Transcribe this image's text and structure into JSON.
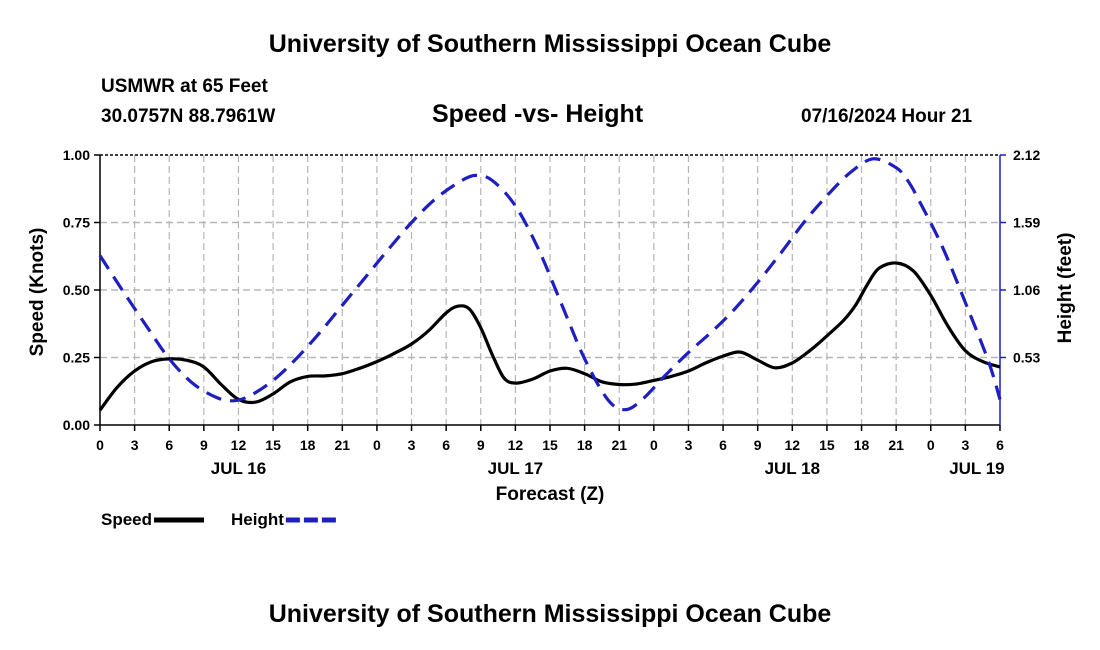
{
  "header": {
    "main_title": "University of Southern Mississippi Ocean Cube",
    "station": "USMWR at 65 Feet",
    "coordinates": "30.0757N  88.7961W",
    "chart_title": "Speed -vs- Height",
    "timestamp": "07/16/2024 Hour 21"
  },
  "footer": {
    "main_title": "University of Southern Mississippi Ocean Cube"
  },
  "colors": {
    "speed": "#000000",
    "height": "#1f1fbf",
    "grid": "#b5b5b5"
  },
  "chart_data": {
    "type": "line",
    "title": "Speed -vs- Height",
    "xlabel": "Forecast (Z)",
    "ylabel": "Speed (Knots)",
    "y2label": "Height (feet)",
    "x_unit": "hours since 2024-07-16 00Z",
    "xlim": [
      0,
      78
    ],
    "ylim": [
      0,
      1.0
    ],
    "y2lim": [
      0,
      2.12
    ],
    "x_ticks": [
      0,
      3,
      6,
      9,
      12,
      15,
      18,
      21,
      24,
      27,
      30,
      33,
      36,
      39,
      42,
      45,
      48,
      51,
      54,
      57,
      60,
      63,
      66,
      69,
      72,
      75,
      78
    ],
    "x_tick_labels": [
      "0",
      "3",
      "6",
      "9",
      "12",
      "15",
      "18",
      "21",
      "0",
      "3",
      "6",
      "9",
      "12",
      "15",
      "18",
      "21",
      "0",
      "3",
      "6",
      "9",
      "12",
      "15",
      "18",
      "21",
      "0",
      "3",
      "6"
    ],
    "date_labels": [
      {
        "x": 12,
        "label": "JUL 16"
      },
      {
        "x": 36,
        "label": "JUL 17"
      },
      {
        "x": 60,
        "label": "JUL 18"
      },
      {
        "x": 76,
        "label": "JUL 19"
      }
    ],
    "y_ticks": [
      0,
      0.25,
      0.5,
      0.75,
      1.0
    ],
    "y_tick_labels": [
      "0.00",
      "0.25",
      "0.50",
      "0.75",
      "1.00"
    ],
    "y2_ticks": [
      0.53,
      1.06,
      1.59,
      2.12
    ],
    "y2_tick_labels": [
      "0.53",
      "1.06",
      "1.59",
      "2.12"
    ],
    "grid": true,
    "legend_position": "bottom-left",
    "series": [
      {
        "name": "Speed",
        "axis": "left",
        "style": "solid",
        "x": [
          0,
          1.5,
          3,
          4.5,
          6,
          7.5,
          9,
          10.5,
          12,
          13.5,
          15,
          16.5,
          18,
          19.5,
          21,
          22.5,
          24,
          25.5,
          27,
          28.5,
          30,
          31,
          32,
          33,
          34,
          35,
          36,
          37.5,
          39,
          40.5,
          42,
          43.5,
          45,
          46.5,
          48,
          49.5,
          51,
          52.5,
          54,
          55.5,
          57,
          58.5,
          60,
          61.5,
          63,
          64.5,
          65.5,
          66.5,
          67.5,
          69,
          70.5,
          72,
          73.5,
          75,
          76.5,
          78
        ],
        "values": [
          0.055,
          0.14,
          0.2,
          0.235,
          0.245,
          0.24,
          0.215,
          0.15,
          0.095,
          0.085,
          0.115,
          0.16,
          0.18,
          0.182,
          0.19,
          0.21,
          0.235,
          0.265,
          0.3,
          0.35,
          0.415,
          0.44,
          0.43,
          0.36,
          0.26,
          0.175,
          0.155,
          0.17,
          0.2,
          0.21,
          0.19,
          0.16,
          0.15,
          0.152,
          0.165,
          0.18,
          0.2,
          0.23,
          0.255,
          0.27,
          0.24,
          0.212,
          0.23,
          0.275,
          0.33,
          0.39,
          0.445,
          0.52,
          0.58,
          0.6,
          0.57,
          0.48,
          0.365,
          0.275,
          0.235,
          0.215
        ]
      },
      {
        "name": "Height",
        "axis": "right",
        "style": "dashed",
        "x": [
          0,
          2,
          4,
          6,
          8,
          10,
          11.5,
          13,
          15,
          17,
          19,
          21,
          23,
          25,
          27,
          29,
          31,
          32.5,
          34,
          36,
          38,
          40,
          42,
          44,
          45.5,
          47,
          49,
          51,
          53,
          55,
          57,
          59,
          61,
          63,
          65,
          67,
          69,
          70,
          71,
          73,
          75,
          77,
          78
        ],
        "values": [
          1.33,
          1.05,
          0.78,
          0.52,
          0.33,
          0.22,
          0.19,
          0.23,
          0.35,
          0.52,
          0.72,
          0.94,
          1.16,
          1.38,
          1.59,
          1.77,
          1.9,
          1.96,
          1.92,
          1.72,
          1.38,
          0.95,
          0.52,
          0.2,
          0.12,
          0.2,
          0.39,
          0.57,
          0.73,
          0.91,
          1.12,
          1.35,
          1.59,
          1.8,
          1.98,
          2.09,
          2.02,
          1.92,
          1.76,
          1.4,
          0.96,
          0.5,
          0.2
        ]
      }
    ]
  }
}
